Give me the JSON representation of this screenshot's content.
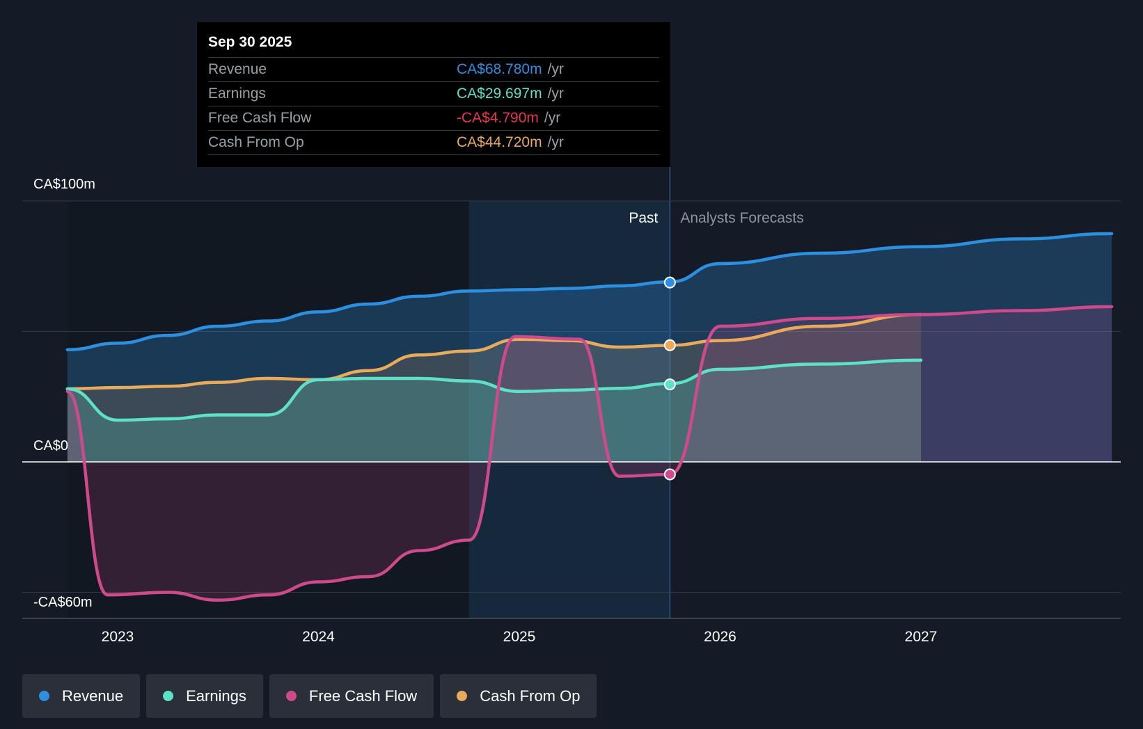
{
  "chart_data": {
    "type": "line",
    "y_axis": {
      "labels": [
        "CA$100m",
        "CA$0",
        "-CA$60m"
      ],
      "ylim": [
        -65,
        100
      ],
      "gridlines": [
        100,
        50,
        0,
        -50
      ]
    },
    "x_axis": {
      "ticks": [
        "2023",
        "2024",
        "2025",
        "2026",
        "2027"
      ],
      "xlim": [
        2022.75,
        2027.95
      ]
    },
    "past_label": "Past",
    "forecast_label": "Analysts Forecasts",
    "divider_x": 2025.75,
    "highlight_start_x": 2024.75,
    "series": [
      {
        "name": "Revenue",
        "color": "#2d8fe0",
        "x": [
          2022.75,
          2023.0,
          2023.25,
          2023.5,
          2023.75,
          2024.0,
          2024.25,
          2024.5,
          2024.75,
          2025.0,
          2025.25,
          2025.5,
          2025.75,
          2026.0,
          2026.5,
          2027.0,
          2027.5,
          2027.95
        ],
        "values": [
          43,
          45.5,
          48.5,
          52,
          54,
          57.5,
          60.5,
          63.5,
          65.5,
          66,
          66.5,
          67.5,
          69,
          76,
          80,
          82.5,
          85.5,
          87.5
        ]
      },
      {
        "name": "Earnings",
        "color": "#5fe0c8",
        "x": [
          2022.75,
          2023.0,
          2023.25,
          2023.5,
          2023.75,
          2024.0,
          2024.25,
          2024.5,
          2024.75,
          2025.0,
          2025.25,
          2025.5,
          2025.75,
          2026.0,
          2026.5,
          2027.0
        ],
        "values": [
          28,
          16,
          16.5,
          18,
          18,
          31.5,
          32,
          32,
          31,
          27,
          27.5,
          28.2,
          30,
          35.5,
          37.5,
          39
        ]
      },
      {
        "name": "Free Cash Flow",
        "color": "#cf4a8c",
        "x": [
          2022.75,
          2022.95,
          2023.25,
          2023.5,
          2023.75,
          2024.0,
          2024.25,
          2024.5,
          2024.75,
          2024.98,
          2025.3,
          2025.5,
          2025.75,
          2026.0,
          2026.5,
          2027.0,
          2027.5,
          2027.95
        ],
        "values": [
          27,
          -51,
          -50,
          -53,
          -51,
          -46,
          -44,
          -34,
          -30,
          48,
          47,
          -5.5,
          -4.8,
          52,
          55,
          56.5,
          58,
          59.5
        ]
      },
      {
        "name": "Cash From Op",
        "color": "#eaaa5c",
        "x": [
          2022.75,
          2023.0,
          2023.25,
          2023.5,
          2023.75,
          2024.0,
          2024.25,
          2024.5,
          2024.75,
          2025.0,
          2025.25,
          2025.5,
          2025.75,
          2026.0,
          2026.5,
          2027.0
        ],
        "values": [
          28,
          28.5,
          29,
          30.5,
          32,
          31.5,
          35,
          41,
          42.5,
          47,
          46.5,
          44,
          44.7,
          46.5,
          52,
          56.5
        ]
      }
    ],
    "highlight_points": [
      {
        "series": "Revenue",
        "x": 2025.75,
        "y": 68.78
      },
      {
        "series": "Earnings",
        "x": 2025.75,
        "y": 29.697
      },
      {
        "series": "Free Cash Flow",
        "x": 2025.75,
        "y": -4.79
      },
      {
        "series": "Cash From Op",
        "x": 2025.75,
        "y": 44.72
      }
    ]
  },
  "tooltip": {
    "date": "Sep 30 2025",
    "rows": [
      {
        "label": "Revenue",
        "value": "CA$68.780m",
        "unit": "/yr",
        "color": "#2d8fe0"
      },
      {
        "label": "Earnings",
        "value": "CA$29.697m",
        "unit": "/yr",
        "color": "#5fe0c8"
      },
      {
        "label": "Free Cash Flow",
        "value": "-CA$4.790m",
        "unit": "/yr",
        "color": "#e8384f"
      },
      {
        "label": "Cash From Op",
        "value": "CA$44.720m",
        "unit": "/yr",
        "color": "#eaaa5c"
      }
    ]
  },
  "legend": [
    {
      "label": "Revenue",
      "color": "#2d8fe0"
    },
    {
      "label": "Earnings",
      "color": "#5fe0c8"
    },
    {
      "label": "Free Cash Flow",
      "color": "#cf4a8c"
    },
    {
      "label": "Cash From Op",
      "color": "#eaaa5c"
    }
  ]
}
